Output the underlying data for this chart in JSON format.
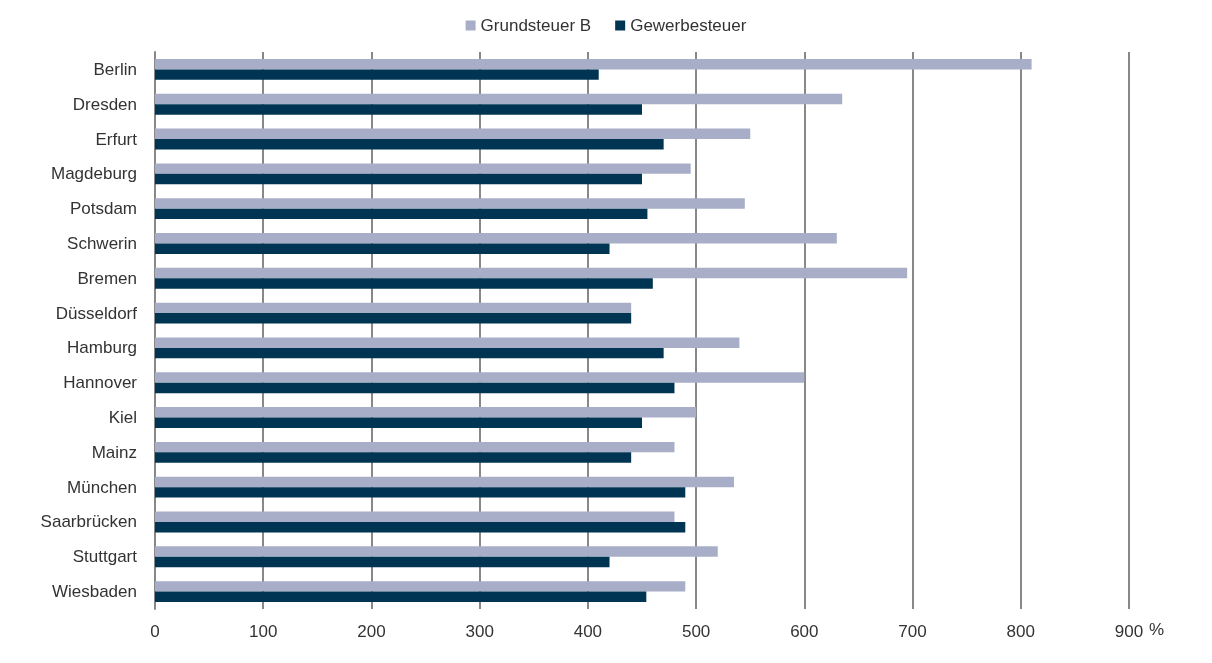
{
  "chart_data": {
    "type": "bar",
    "orientation": "horizontal",
    "xlabel": "%",
    "categories": [
      "Berlin",
      "Dresden",
      "Erfurt",
      "Magdeburg",
      "Potsdam",
      "Schwerin",
      "Bremen",
      "Düsseldorf",
      "Hamburg",
      "Hannover",
      "Kiel",
      "Mainz",
      "München",
      "Saarbrücken",
      "Stuttgart",
      "Wiesbaden"
    ],
    "series": [
      {
        "name": "Grundsteuer B",
        "color": "#a9aec8",
        "values": [
          810,
          635,
          550,
          495,
          545,
          630,
          695,
          440,
          540,
          600,
          500,
          480,
          535,
          480,
          520,
          490
        ]
      },
      {
        "name": "Gewerbesteuer",
        "color": "#003453",
        "values": [
          410,
          450,
          470,
          450,
          455,
          420,
          460,
          440,
          470,
          480,
          450,
          440,
          490,
          490,
          420,
          454
        ]
      }
    ],
    "xlim": [
      0,
      900
    ],
    "xticks": [
      0,
      100,
      200,
      300,
      400,
      500,
      600,
      700,
      800,
      900
    ],
    "grid": "x",
    "legend": "top"
  }
}
